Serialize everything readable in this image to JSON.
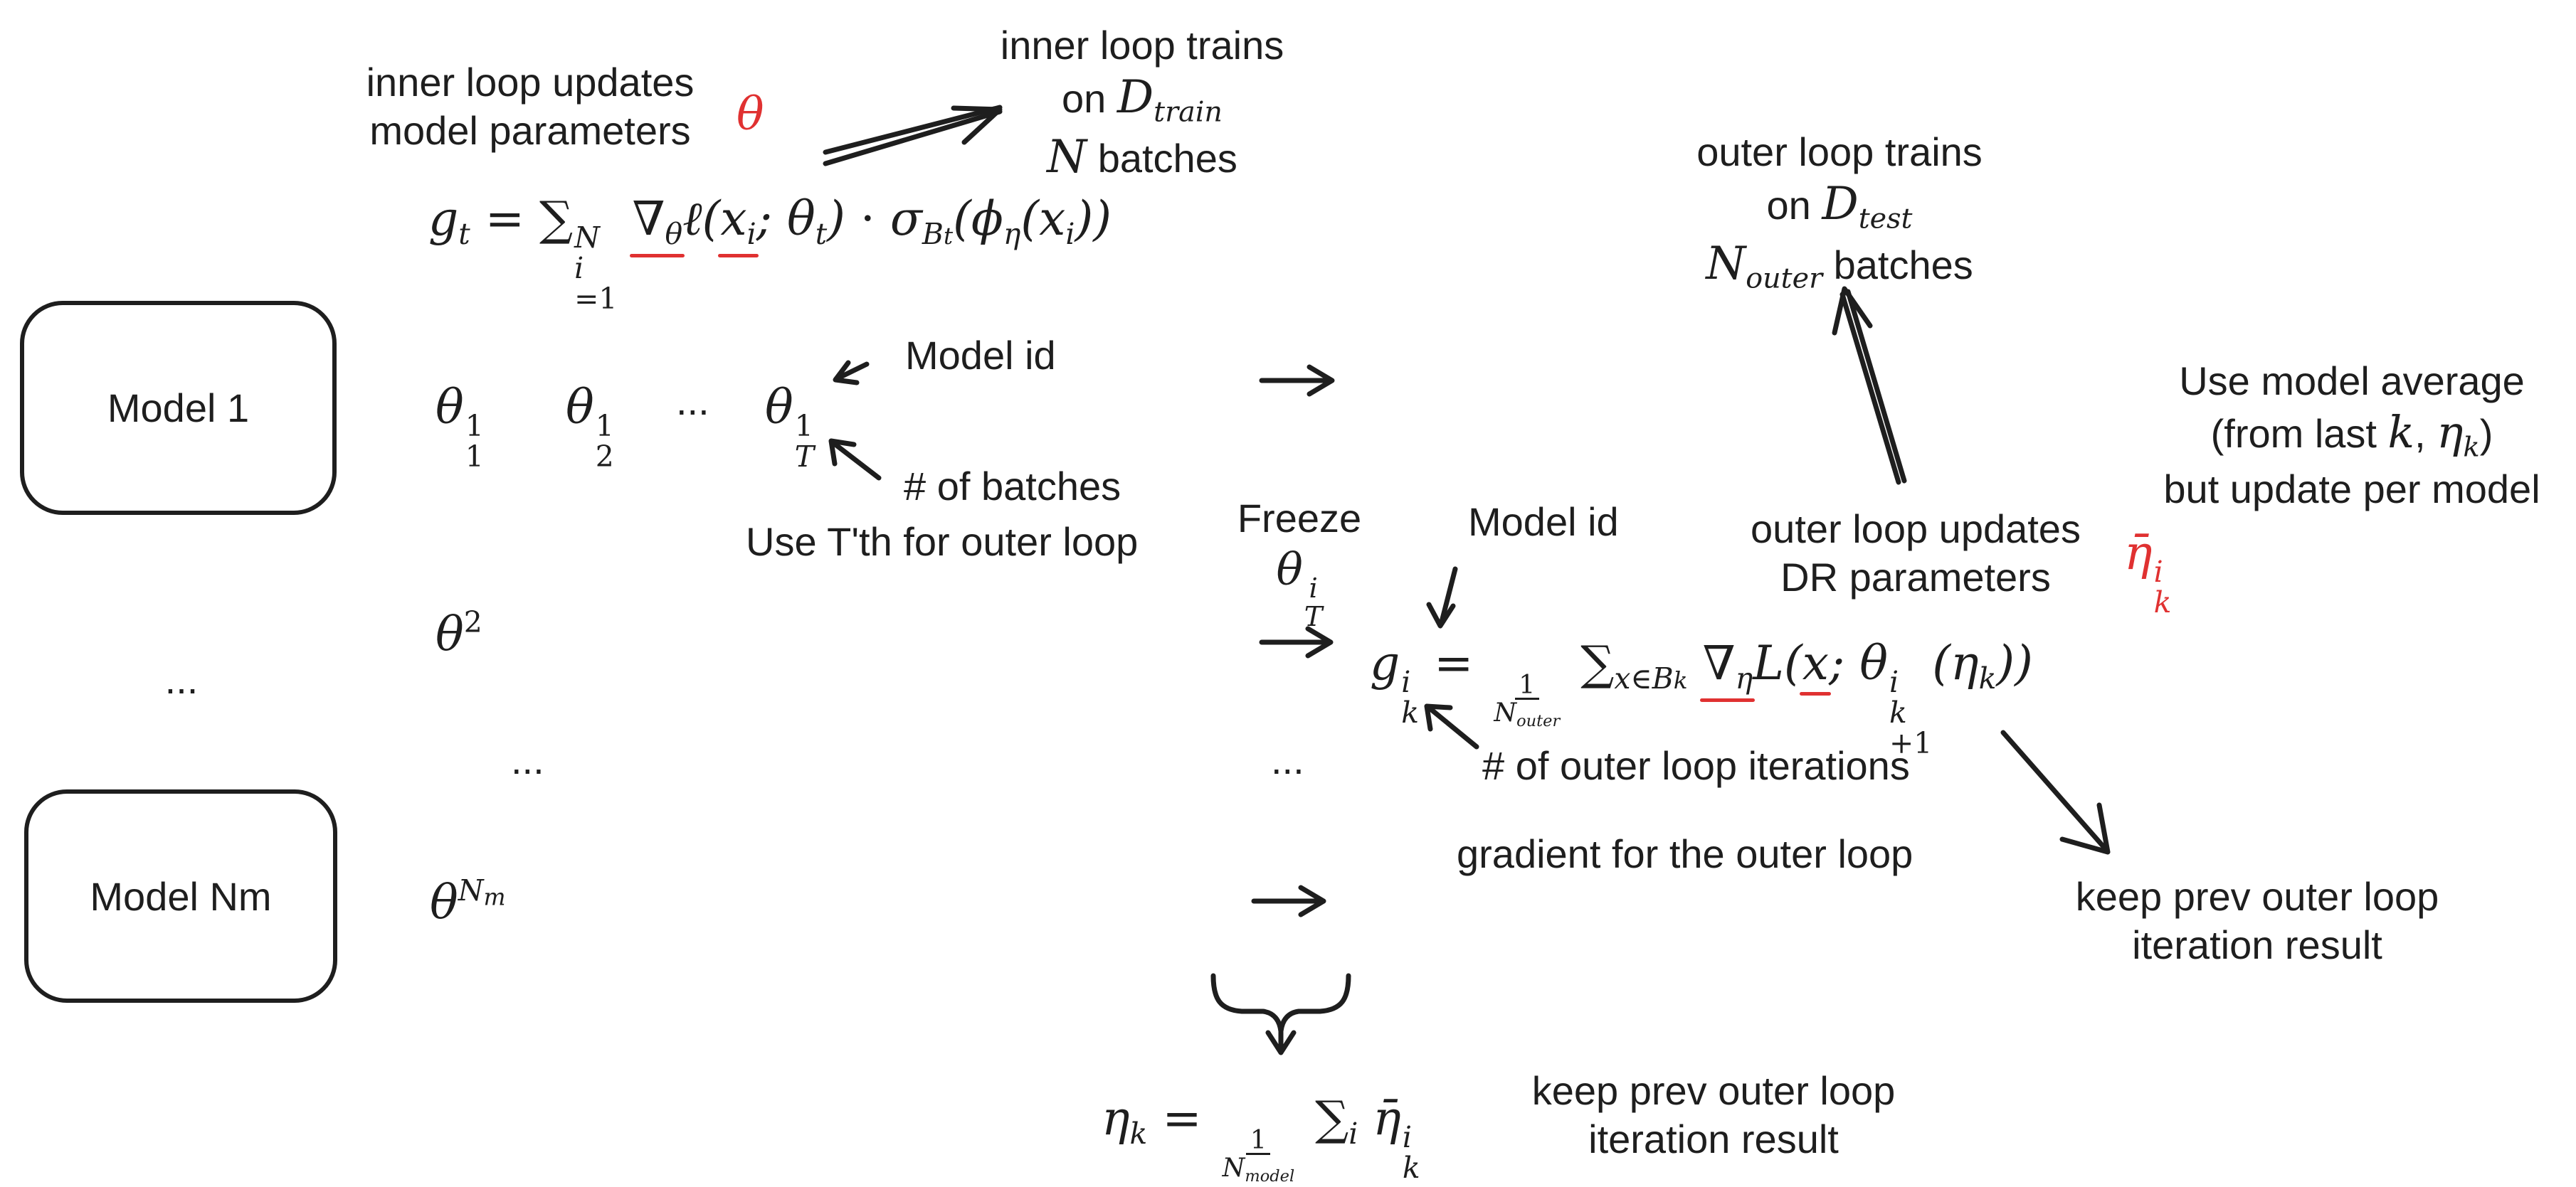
{
  "models": {
    "first": "Model 1",
    "middle_dots": "...",
    "last": "Model Nm"
  },
  "inner": {
    "updates_line1": "inner loop updates",
    "updates_line2": "model parameters",
    "theta_symbol": "θ",
    "trains_line1": "inner loop trains",
    "trains_line2_on": "on",
    "trains_line3_batches": "batches",
    "model_id_label": "Model id",
    "batches_label": "# of batches",
    "use_tth_label": "Use T'th for outer loop",
    "seq_dots": "...",
    "middle_dots": "..."
  },
  "outer": {
    "trains_line1": "outer loop trains",
    "trains_line2_on": "on",
    "trains_line3_batches": "batches",
    "freeze_label": "Freeze",
    "model_id_label": "Model id",
    "updates_line1": "outer loop updates",
    "updates_line2": "DR parameters",
    "iterations_label": "# of outer loop iterations",
    "gradient_label": "gradient for the outer loop",
    "keep_prev_right_line1": "keep prev outer loop",
    "keep_prev_right_line2": "iteration result",
    "keep_prev_bottom_line1": "keep prev outer loop",
    "keep_prev_bottom_line2": "iteration result",
    "average_line1": "Use model average",
    "average_line2_prefix": "(from last",
    "average_line3": "but update per model",
    "middle_dots": "..."
  },
  "colors": {
    "ink": "#1e1e1e",
    "accent": "#e03131"
  }
}
